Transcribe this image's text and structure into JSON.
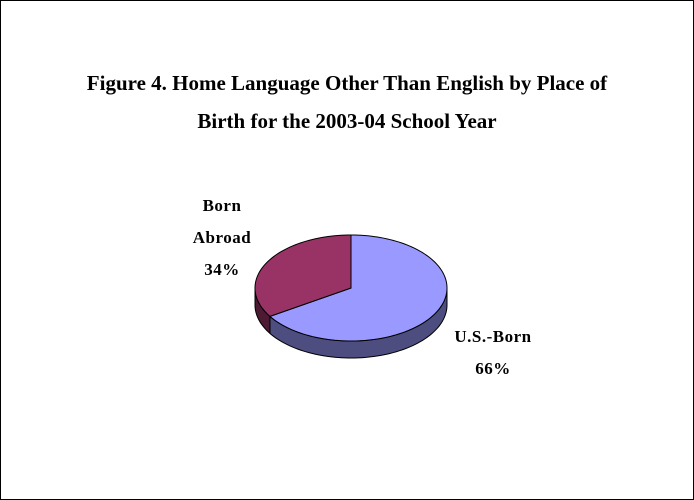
{
  "chart_data": {
    "type": "pie",
    "title": "Figure 4.  Home Language Other Than English by Place of Birth for the 2003-04 School Year",
    "categories": [
      "U.S.-Born",
      "Born Abroad"
    ],
    "values": [
      66,
      34
    ],
    "value_labels": [
      "66%",
      "34%"
    ],
    "colors": [
      "#9999ff",
      "#993366"
    ],
    "side_colors": [
      "#4d4d80",
      "#4d1a33"
    ]
  }
}
